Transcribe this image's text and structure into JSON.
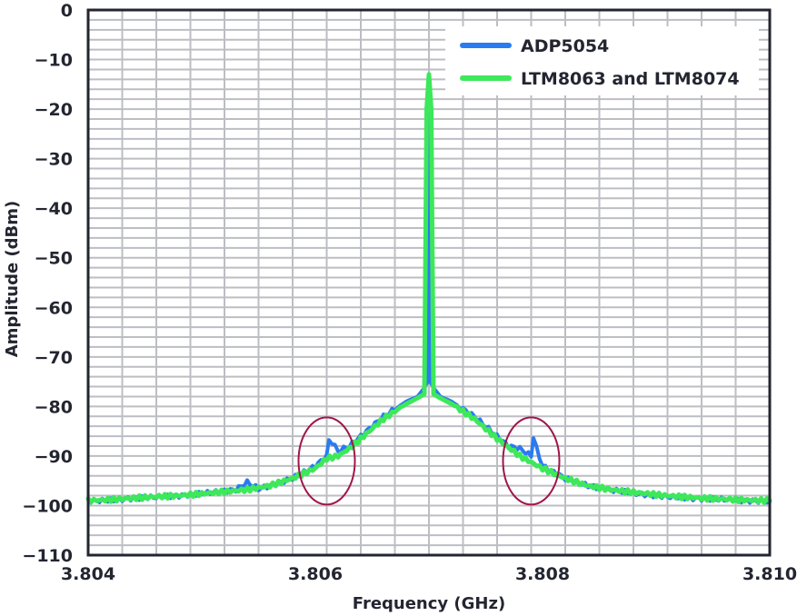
{
  "chart_data": {
    "type": "line",
    "title": "",
    "xlabel": "Frequency (GHz)",
    "ylabel": "Amplitude (dBm)",
    "xlim": [
      3.804,
      3.81
    ],
    "ylim": [
      -110,
      0
    ],
    "x_ticks": [
      "3.804",
      "3.806",
      "3.808",
      "3.810"
    ],
    "x_tick_values": [
      3.804,
      3.806,
      3.808,
      3.81
    ],
    "y_ticks": [
      "0",
      "-10",
      "-20",
      "-30",
      "-40",
      "-50",
      "-60",
      "-70",
      "-80",
      "-90",
      "-100",
      "-110"
    ],
    "y_tick_values": [
      0,
      -10,
      -20,
      -30,
      -40,
      -50,
      -60,
      -70,
      -80,
      -90,
      -100,
      -110
    ],
    "grid": true,
    "grid_x_minor_step": 0.0003,
    "grid_y_minor_step": 2,
    "legend_position": "upper right",
    "series": [
      {
        "name": "ADP5054",
        "color": "#2a7bf0",
        "x": [
          3.804,
          3.8042,
          3.8044,
          3.8046,
          3.8048,
          3.805,
          3.8052,
          3.8053,
          3.8054,
          3.8055,
          3.8056,
          3.8058,
          3.806,
          3.8061,
          3.80612,
          3.8062,
          3.8063,
          3.8064,
          3.8066,
          3.8068,
          3.8069,
          3.80695,
          3.80699,
          3.807,
          3.80701,
          3.80705,
          3.8071,
          3.8072,
          3.8074,
          3.8076,
          3.8077,
          3.8078,
          3.8079,
          3.80792,
          3.808,
          3.8082,
          3.8084,
          3.8086,
          3.8088,
          3.809,
          3.8092,
          3.8094,
          3.8096,
          3.8098,
          3.81
        ],
        "values": [
          -99,
          -99,
          -98.5,
          -98.3,
          -98,
          -97.6,
          -97,
          -96.8,
          -95.3,
          -96.6,
          -96,
          -94.5,
          -92,
          -90,
          -86.5,
          -89,
          -88,
          -86,
          -82,
          -79,
          -78,
          -76.5,
          -75,
          -13,
          -75,
          -76.5,
          -78,
          -79,
          -82,
          -86,
          -88,
          -88.5,
          -90,
          -86.5,
          -92,
          -94.5,
          -96,
          -96.8,
          -97.5,
          -98,
          -98.4,
          -98.6,
          -98.8,
          -99,
          -99.2
        ]
      },
      {
        "name": "LTM8063 and LTM8074",
        "color": "#3de85a",
        "x": [
          3.804,
          3.8042,
          3.8044,
          3.8046,
          3.8048,
          3.805,
          3.8052,
          3.8054,
          3.8056,
          3.8058,
          3.806,
          3.8061,
          3.8062,
          3.8063,
          3.8064,
          3.8066,
          3.8068,
          3.8069,
          3.80696,
          3.80698,
          3.807,
          3.80702,
          3.80704,
          3.8071,
          3.8072,
          3.8074,
          3.8076,
          3.8078,
          3.808,
          3.8082,
          3.8084,
          3.8086,
          3.8088,
          3.809,
          3.8092,
          3.8094,
          3.8096,
          3.8098,
          3.81
        ],
        "values": [
          -99,
          -98.8,
          -98.5,
          -98.2,
          -98,
          -97.6,
          -97.2,
          -96.8,
          -96,
          -94.5,
          -92.5,
          -90.5,
          -90,
          -88.5,
          -86.5,
          -82.5,
          -79.5,
          -78.3,
          -77.5,
          -20,
          -13,
          -20,
          -77.5,
          -78.3,
          -79.5,
          -82.5,
          -86.5,
          -90,
          -92.5,
          -94.5,
          -96,
          -96.8,
          -97.3,
          -97.8,
          -98.2,
          -98.5,
          -98.7,
          -98.9,
          -99
        ]
      }
    ],
    "annotations": [
      {
        "type": "ellipse",
        "center_x": 3.8061,
        "center_y": -91,
        "label": "spur-highlight-left",
        "color": "#a0164a"
      },
      {
        "type": "ellipse",
        "center_x": 3.8079,
        "center_y": -91,
        "label": "spur-highlight-right",
        "color": "#a0164a"
      }
    ]
  },
  "legend": {
    "items": [
      {
        "label": "ADP5054",
        "color": "#2a7bf0"
      },
      {
        "label": "LTM8063 and LTM8074",
        "color": "#3de85a"
      }
    ]
  },
  "style": {
    "axis_color": "#232631",
    "grid_color": "#bdbec3",
    "annotation_color": "#a0164a"
  }
}
